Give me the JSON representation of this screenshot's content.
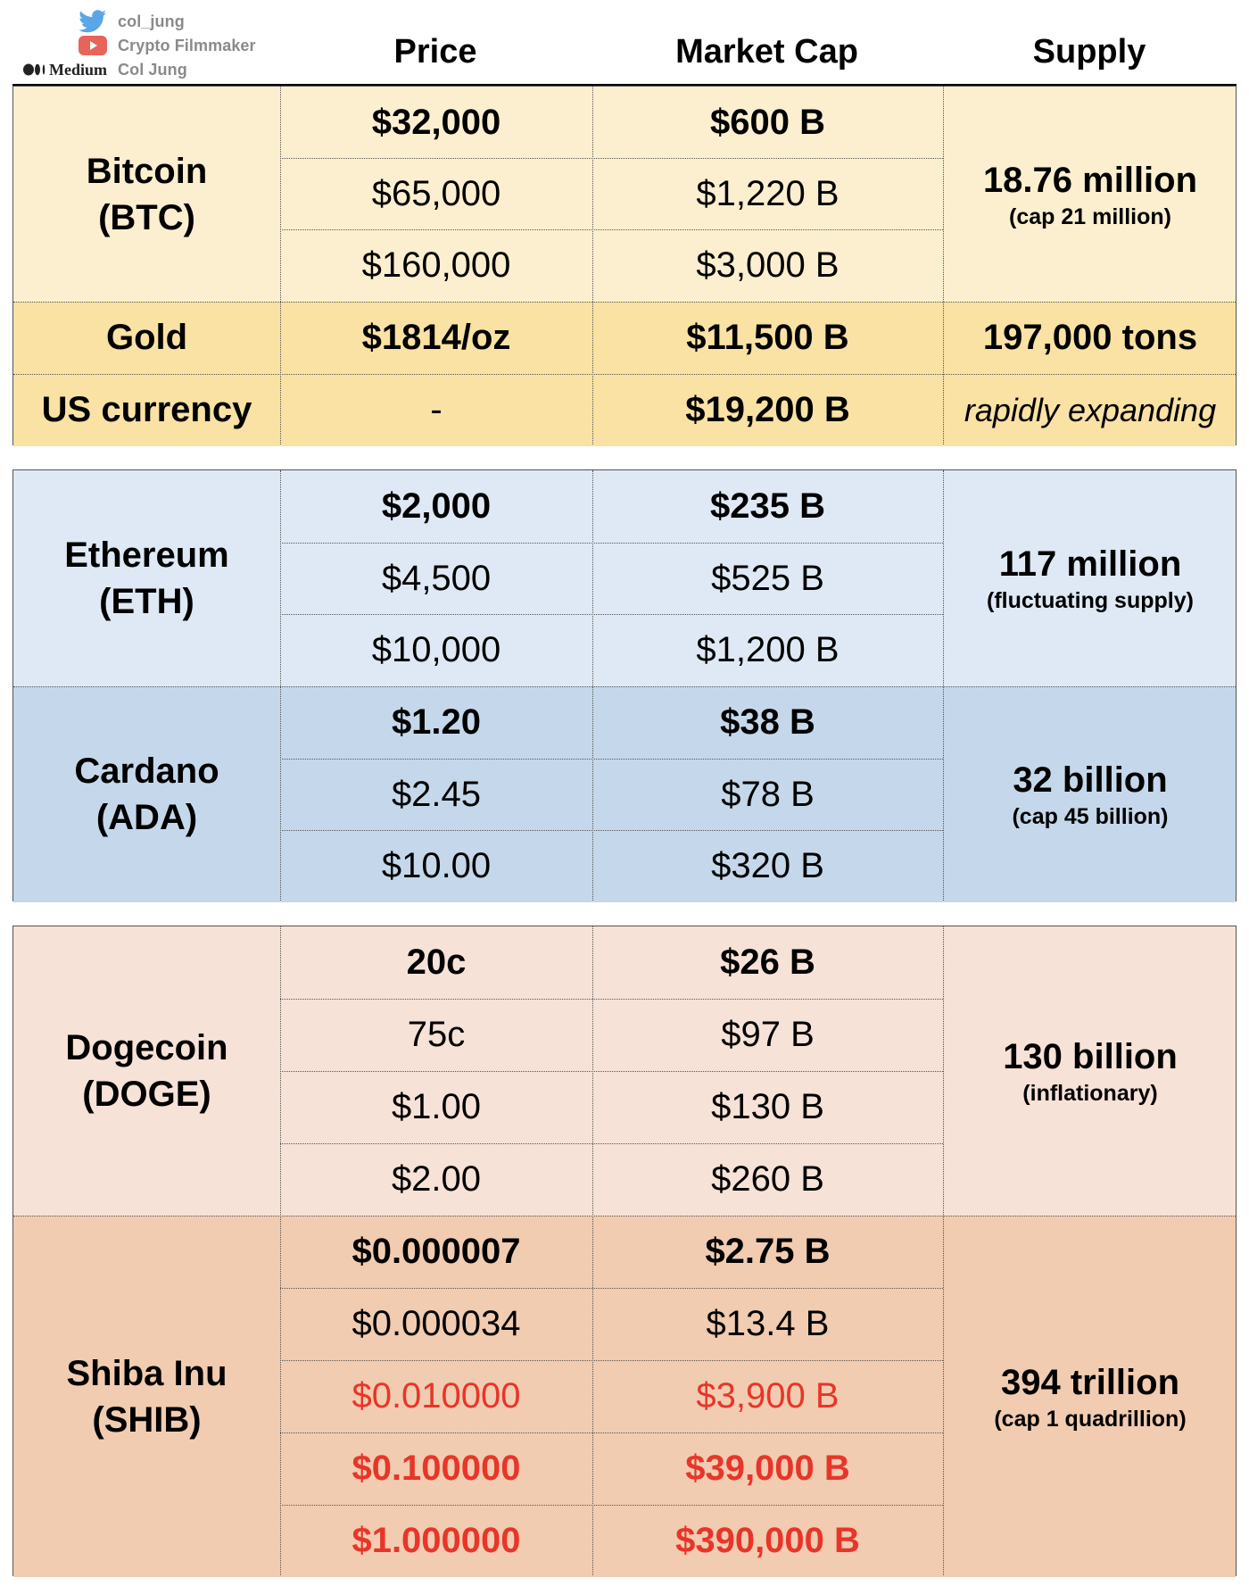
{
  "credits": [
    {
      "icon": "twitter-bird-icon",
      "text": "col_jung"
    },
    {
      "icon": "youtube-play-icon",
      "text": "Crypto Filmmaker"
    },
    {
      "icon": "medium-logo-icon",
      "logo_text": "Medium",
      "text": "Col Jung"
    }
  ],
  "headers": {
    "price": "Price",
    "market_cap": "Market Cap",
    "supply": "Supply"
  },
  "colors": {
    "btc": "#fcefcf",
    "gold": "#f9e2a3",
    "eth": "#dfe9f5",
    "ada": "#c5d8eb",
    "doge": "#f7e2d7",
    "shib": "#f1ccb0",
    "red_text": "#e8352a",
    "grid_line": "#555555"
  },
  "btc": {
    "name": "Bitcoin",
    "ticker": "(BTC)",
    "rows": [
      {
        "price": "$32,000",
        "cap": "$600 B"
      },
      {
        "price": "$65,000",
        "cap": "$1,220 B"
      },
      {
        "price": "$160,000",
        "cap": "$3,000 B"
      }
    ],
    "supply": "18.76 million",
    "supply_note": "(cap 21 million)"
  },
  "gold": {
    "name": "Gold",
    "price": "$1814/oz",
    "cap": "$11,500 B",
    "supply": "197,000 tons"
  },
  "usd": {
    "name": "US currency",
    "price": "-",
    "cap": "$19,200 B",
    "supply": "rapidly expanding"
  },
  "eth": {
    "name": "Ethereum",
    "ticker": "(ETH)",
    "rows": [
      {
        "price": "$2,000",
        "cap": "$235 B"
      },
      {
        "price": "$4,500",
        "cap": "$525 B"
      },
      {
        "price": "$10,000",
        "cap": "$1,200 B"
      }
    ],
    "supply": "117 million",
    "supply_note": "(fluctuating supply)"
  },
  "ada": {
    "name": "Cardano",
    "ticker": "(ADA)",
    "rows": [
      {
        "price": "$1.20",
        "cap": "$38 B"
      },
      {
        "price": "$2.45",
        "cap": "$78 B"
      },
      {
        "price": "$10.00",
        "cap": "$320 B"
      }
    ],
    "supply": "32 billion",
    "supply_note": "(cap 45 billion)"
  },
  "doge": {
    "name": "Dogecoin",
    "ticker": "(DOGE)",
    "rows": [
      {
        "price": "20c",
        "cap": "$26 B"
      },
      {
        "price": "75c",
        "cap": "$97 B"
      },
      {
        "price": "$1.00",
        "cap": "$130 B"
      },
      {
        "price": "$2.00",
        "cap": "$260 B"
      }
    ],
    "supply": "130 billion",
    "supply_note": "(inflationary)"
  },
  "shib": {
    "name": "Shiba Inu",
    "ticker": "(SHIB)",
    "rows": [
      {
        "price": "$0.000007",
        "cap": "$2.75 B"
      },
      {
        "price": "$0.000034",
        "cap": "$13.4 B"
      },
      {
        "price": "$0.010000",
        "cap": "$3,900 B"
      },
      {
        "price": "$0.100000",
        "cap": "$39,000 B"
      },
      {
        "price": "$1.000000",
        "cap": "$390,000 B"
      }
    ],
    "supply": "394 trillion",
    "supply_note": "(cap 1 quadrillion)"
  }
}
